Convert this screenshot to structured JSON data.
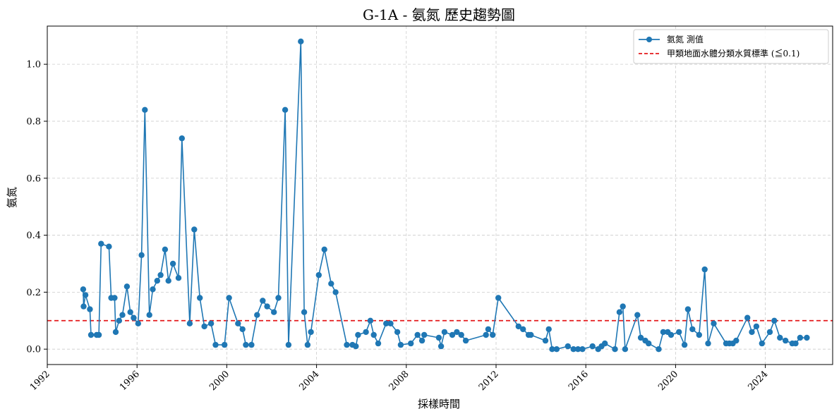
{
  "chart_data": {
    "type": "line",
    "title": "G-1A - 氨氮 歷史趨勢圖",
    "xlabel": "採樣時間",
    "ylabel": "氨氮",
    "xlim": [
      1992.0,
      2027.0
    ],
    "ylim": [
      -0.054,
      1.134
    ],
    "x_ticks": [
      1992,
      1996,
      2000,
      2004,
      2008,
      2012,
      2016,
      2020,
      2024
    ],
    "x_tick_labels": [
      "1992",
      "1996",
      "2000",
      "2004",
      "2008",
      "2012",
      "2016",
      "2020",
      "2024"
    ],
    "y_ticks": [
      0.0,
      0.2,
      0.4,
      0.6,
      0.8,
      1.0
    ],
    "y_tick_labels": [
      "0.0",
      "0.2",
      "0.4",
      "0.6",
      "0.8",
      "1.0"
    ],
    "grid": true,
    "legend_position": "top-right",
    "series": [
      {
        "name": "氨氮 測值",
        "color": "#1f77b4",
        "marker": "circle",
        "x": [
          1993.6,
          1993.62,
          1993.7,
          1993.9,
          1993.95,
          1994.2,
          1994.3,
          1994.4,
          1994.75,
          1994.85,
          1995.0,
          1995.05,
          1995.2,
          1995.35,
          1995.55,
          1995.7,
          1995.85,
          1996.05,
          1996.2,
          1996.35,
          1996.55,
          1996.7,
          1996.9,
          1997.05,
          1997.25,
          1997.4,
          1997.6,
          1997.85,
          1998.0,
          1998.35,
          1998.55,
          1998.8,
          1999.0,
          1999.3,
          1999.5,
          1999.9,
          2000.1,
          2000.5,
          2000.7,
          2000.85,
          2001.1,
          2001.35,
          2001.6,
          2001.8,
          2002.1,
          2002.3,
          2002.6,
          2002.75,
          2003.3,
          2003.45,
          2003.6,
          2003.75,
          2004.1,
          2004.35,
          2004.65,
          2004.85,
          2005.35,
          2005.6,
          2005.75,
          2005.85,
          2006.2,
          2006.4,
          2006.55,
          2006.75,
          2007.1,
          2007.3,
          2007.6,
          2007.75,
          2008.2,
          2008.5,
          2008.7,
          2008.8,
          2009.45,
          2009.55,
          2009.7,
          2010.05,
          2010.25,
          2010.45,
          2010.65,
          2011.55,
          2011.65,
          2011.85,
          2012.1,
          2013.0,
          2013.2,
          2013.45,
          2013.55,
          2014.2,
          2014.35,
          2014.5,
          2014.7,
          2015.2,
          2015.45,
          2015.65,
          2015.85,
          2016.3,
          2016.55,
          2016.7,
          2016.85,
          2017.3,
          2017.5,
          2017.65,
          2017.75,
          2018.3,
          2018.45,
          2018.65,
          2018.8,
          2019.25,
          2019.45,
          2019.65,
          2019.8,
          2020.15,
          2020.4,
          2020.55,
          2020.75,
          2021.05,
          2021.3,
          2021.45,
          2021.7,
          2022.25,
          2022.4,
          2022.55,
          2022.7,
          2023.2,
          2023.4,
          2023.6,
          2023.85,
          2024.2,
          2024.4,
          2024.65,
          2024.9,
          2025.2,
          2025.35,
          2025.55,
          2025.85
        ],
        "y": [
          0.21,
          0.15,
          0.19,
          0.14,
          0.05,
          0.05,
          0.05,
          0.37,
          0.36,
          0.18,
          0.18,
          0.06,
          0.1,
          0.12,
          0.22,
          0.13,
          0.11,
          0.09,
          0.33,
          0.84,
          0.12,
          0.21,
          0.24,
          0.26,
          0.35,
          0.24,
          0.3,
          0.25,
          0.74,
          0.09,
          0.42,
          0.18,
          0.08,
          0.09,
          0.015,
          0.015,
          0.18,
          0.09,
          0.07,
          0.015,
          0.015,
          0.12,
          0.17,
          0.15,
          0.13,
          0.18,
          0.84,
          0.015,
          1.08,
          0.13,
          0.015,
          0.06,
          0.26,
          0.35,
          0.23,
          0.2,
          0.015,
          0.015,
          0.01,
          0.05,
          0.06,
          0.1,
          0.05,
          0.02,
          0.09,
          0.09,
          0.06,
          0.015,
          0.02,
          0.05,
          0.03,
          0.05,
          0.04,
          0.01,
          0.06,
          0.05,
          0.06,
          0.05,
          0.03,
          0.05,
          0.07,
          0.05,
          0.18,
          0.08,
          0.07,
          0.05,
          0.05,
          0.03,
          0.07,
          0.0,
          0.0,
          0.01,
          0.0,
          0.0,
          0.0,
          0.01,
          0.0,
          0.01,
          0.02,
          0.0,
          0.13,
          0.15,
          0.0,
          0.12,
          0.04,
          0.03,
          0.02,
          0.0,
          0.06,
          0.06,
          0.05,
          0.06,
          0.015,
          0.14,
          0.07,
          0.05,
          0.28,
          0.02,
          0.09,
          0.02,
          0.02,
          0.02,
          0.03,
          0.11,
          0.06,
          0.08,
          0.02,
          0.06,
          0.1,
          0.04,
          0.03,
          0.02,
          0.02,
          0.04,
          0.04
        ]
      },
      {
        "name": "甲類地面水體分類水質標準 (≦0.1)",
        "type": "hline",
        "color": "#e41a1c",
        "style": "dashed",
        "y": 0.1
      }
    ]
  }
}
